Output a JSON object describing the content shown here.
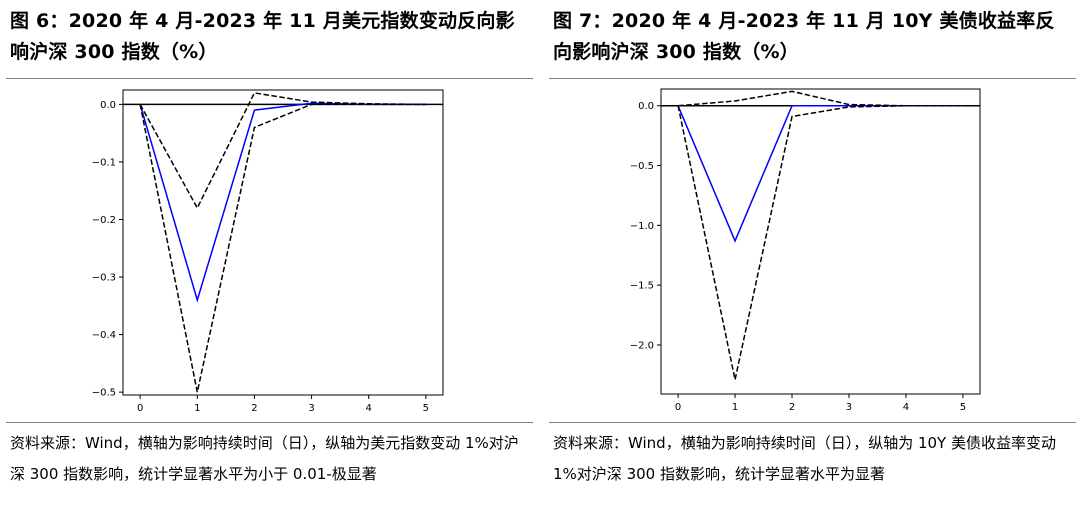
{
  "figures": [
    {
      "title": "图 6：2020 年 4 月-2023 年 11 月美元指数变动反向影响沪深 300 指数（%）",
      "source": "资料来源：Wind，横轴为影响持续时间（日），纵轴为美元指数变动 1%对沪深 300 指数影响，统计学显著水平为小于 0.01-极显著"
    },
    {
      "title": "图 7：2020 年 4 月-2023 年 11 月 10Y 美债收益率反向影响沪深 300 指数（%）",
      "source": "资料来源：Wind，横轴为影响持续时间（日），纵轴为 10Y 美债收益率变动 1%对沪深 300 指数影响，统计学显著水平为显著"
    }
  ],
  "chart_data": [
    {
      "type": "line",
      "x": [
        0,
        1,
        2,
        3,
        4,
        5
      ],
      "xticks": [
        0,
        1,
        2,
        3,
        4,
        5
      ],
      "xticklabels": [
        "0",
        "1",
        "2",
        "3",
        "4",
        "5"
      ],
      "yticks": [
        0.0,
        -0.1,
        -0.2,
        -0.3,
        -0.4,
        -0.5
      ],
      "yticklabels": [
        "0.0",
        "−0.1",
        "−0.2",
        "−0.3",
        "−0.4",
        "−0.5"
      ],
      "xlim": [
        -0.3,
        5.3
      ],
      "ylim": [
        -0.505,
        0.025
      ],
      "zero_line": true,
      "grid": false,
      "series": [
        {
          "role": "response",
          "style": "solid",
          "color": "#0000ff",
          "values": [
            0.0,
            -0.34,
            -0.01,
            0.002,
            0.0,
            0.0
          ]
        },
        {
          "role": "upper-band",
          "style": "dashed",
          "color": "#000000",
          "values": [
            0.0,
            -0.18,
            0.02,
            0.004,
            0.001,
            0.0
          ]
        },
        {
          "role": "lower-band",
          "style": "dashed",
          "color": "#000000",
          "values": [
            0.0,
            -0.5,
            -0.04,
            0.0,
            0.0,
            0.0
          ]
        }
      ]
    },
    {
      "type": "line",
      "x": [
        0,
        1,
        2,
        3,
        4,
        5
      ],
      "xticks": [
        0,
        1,
        2,
        3,
        4,
        5
      ],
      "xticklabels": [
        "0",
        "1",
        "2",
        "3",
        "4",
        "5"
      ],
      "yticks": [
        0.0,
        -0.5,
        -1.0,
        -1.5,
        -2.0
      ],
      "yticklabels": [
        "0.0",
        "−0.5",
        "−1.0",
        "−1.5",
        "−2.0"
      ],
      "xlim": [
        -0.3,
        5.3
      ],
      "ylim": [
        -2.41,
        0.14
      ],
      "zero_line": true,
      "grid": false,
      "series": [
        {
          "role": "response",
          "style": "solid",
          "color": "#0000ff",
          "values": [
            0.0,
            -1.13,
            0.0,
            0.0,
            0.0,
            0.0
          ]
        },
        {
          "role": "upper-band",
          "style": "dashed",
          "color": "#000000",
          "values": [
            0.0,
            0.04,
            0.12,
            0.01,
            0.0,
            0.0
          ]
        },
        {
          "role": "lower-band",
          "style": "dashed",
          "color": "#000000",
          "values": [
            0.0,
            -2.29,
            -0.09,
            -0.01,
            0.0,
            0.0
          ]
        }
      ]
    }
  ]
}
